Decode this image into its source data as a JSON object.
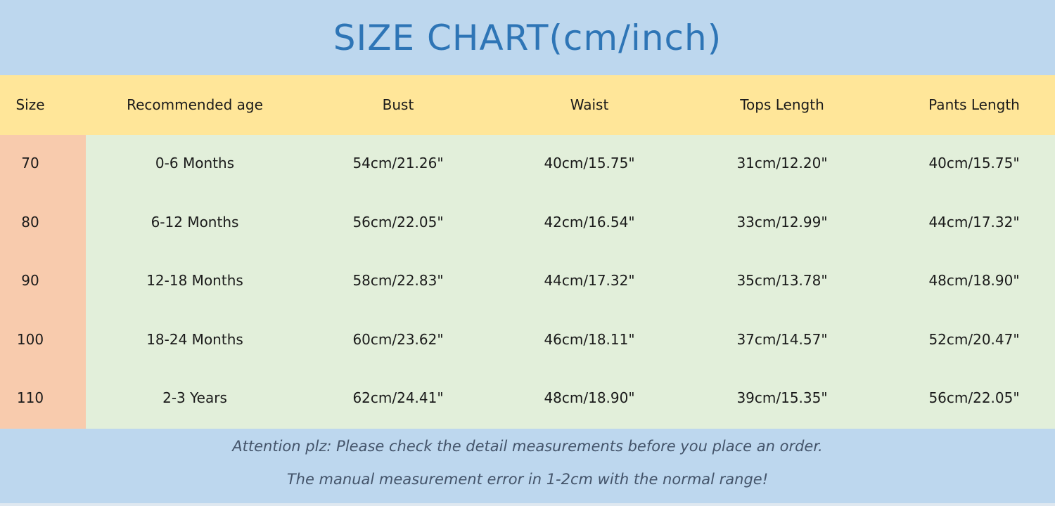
{
  "chart_data": {
    "type": "table",
    "title": "SIZE CHART(cm/inch)",
    "columns": [
      "Size",
      "Recommended age",
      "Bust",
      "Waist",
      "Tops Length",
      "Pants Length"
    ],
    "rows": [
      [
        "70",
        "0-6 Months",
        "54cm/21.26\"",
        "40cm/15.75\"",
        "31cm/12.20\"",
        "40cm/15.75\""
      ],
      [
        "80",
        "6-12 Months",
        "56cm/22.05\"",
        "42cm/16.54\"",
        "33cm/12.99\"",
        "44cm/17.32\""
      ],
      [
        "90",
        "12-18 Months",
        "58cm/22.83\"",
        "44cm/17.32\"",
        "35cm/13.78\"",
        "48cm/18.90\""
      ],
      [
        "100",
        "18-24 Months",
        "60cm/23.62\"",
        "46cm/18.11\"",
        "37cm/14.57\"",
        "52cm/20.47\""
      ],
      [
        "110",
        "2-3 Years",
        "62cm/24.41\"",
        "48cm/18.90\"",
        "39cm/15.35\"",
        "56cm/22.05\""
      ]
    ],
    "notes": [
      "Attention plz:  Please check the detail measurements before you place an order.",
      "The manual measurement error in 1-2cm with the normal range!"
    ]
  },
  "colors": {
    "title_band": "#bdd7ee",
    "title_text": "#2e75b6",
    "header": "#ffe699",
    "size_column": "#f8cbad",
    "body": "#e2efda",
    "notes_text": "#44546a"
  }
}
